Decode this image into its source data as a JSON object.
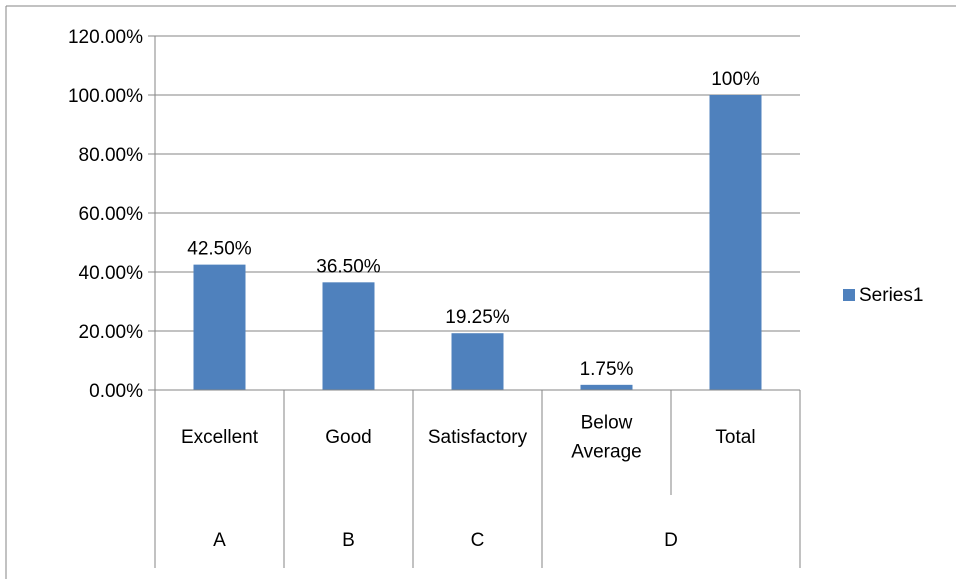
{
  "chart_data": {
    "type": "bar",
    "categories": [
      "Excellent",
      "Good",
      "Satisfactory",
      "Below Average",
      "Total"
    ],
    "category_lines": [
      [
        "Excellent"
      ],
      [
        "Good"
      ],
      [
        "Satisfactory"
      ],
      [
        "Below",
        "Average"
      ],
      [
        "Total"
      ]
    ],
    "groups": [
      {
        "label": "A",
        "members": [
          "Excellent"
        ]
      },
      {
        "label": "B",
        "members": [
          "Good"
        ]
      },
      {
        "label": "C",
        "members": [
          "Satisfactory"
        ]
      },
      {
        "label": "D",
        "members": [
          "Below Average",
          "Total"
        ]
      }
    ],
    "series": [
      {
        "name": "Series1",
        "values": [
          42.5,
          36.5,
          19.25,
          1.75,
          100
        ]
      }
    ],
    "data_labels": [
      "42.50%",
      "36.50%",
      "19.25%",
      "1.75%",
      "100%"
    ],
    "y_ticks": [
      "0.00%",
      "20.00%",
      "40.00%",
      "60.00%",
      "80.00%",
      "100.00%",
      "120.00%"
    ],
    "ylim": [
      0,
      120
    ],
    "y_step": 20,
    "grid": true,
    "legend_position": "right",
    "colors": {
      "bar": "#4F81BD",
      "grid": "#868686",
      "frame": "#868686",
      "text": "#000000"
    }
  }
}
